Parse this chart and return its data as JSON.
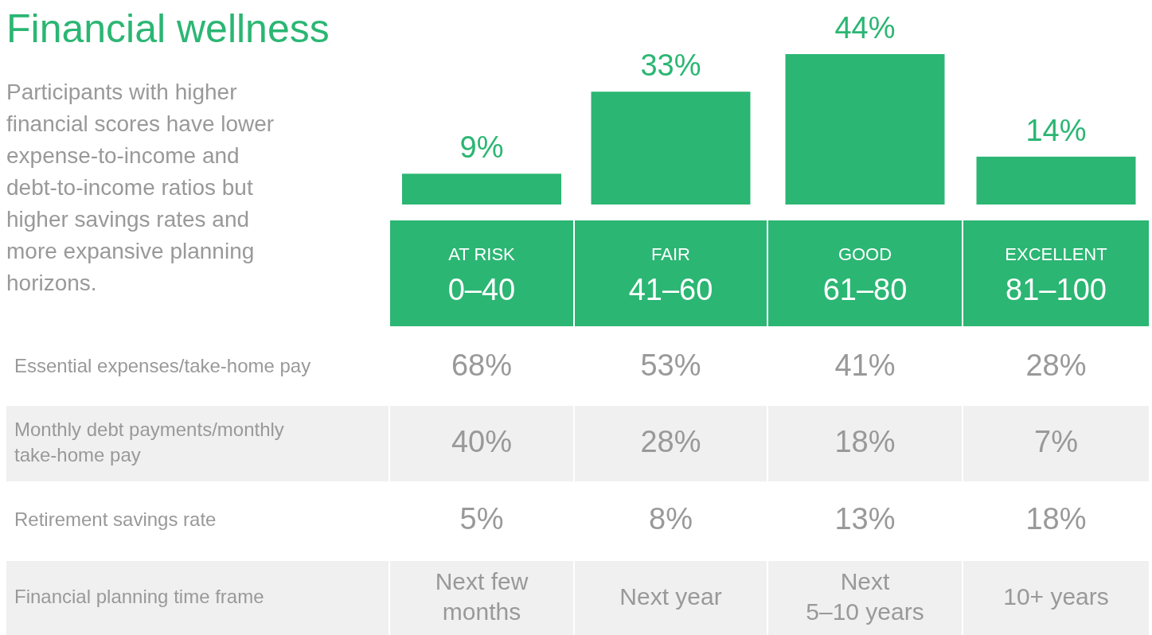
{
  "chart_data": {
    "type": "bar",
    "title": "Financial wellness",
    "subtitle": "Participants with higher financial scores have lower expense-to-income and debt-to-income ratios but higher savings rates and more expansive planning horizons.",
    "categories": [
      "AT RISK\n0–40",
      "FAIR\n41–60",
      "GOOD\n61–80",
      "EXCELLENT\n81–100"
    ],
    "values": [
      9,
      33,
      44,
      14
    ],
    "value_labels": [
      "9%",
      "33%",
      "44%",
      "14%"
    ],
    "color": "#2bb673",
    "annotations": [
      "Essential expenses/take-home pay",
      "68%",
      "53%",
      "41%",
      "28%",
      "Monthly debt payments/monthly\ntake-home pay",
      "40%",
      "28%",
      "18%",
      "7%",
      "Retirement savings rate",
      "5%",
      "8%",
      "13%",
      "18%",
      "Financial planning time frame",
      "Next few\nmonths",
      "Next year",
      "Next\n5–10 years",
      "10+ years"
    ]
  }
}
